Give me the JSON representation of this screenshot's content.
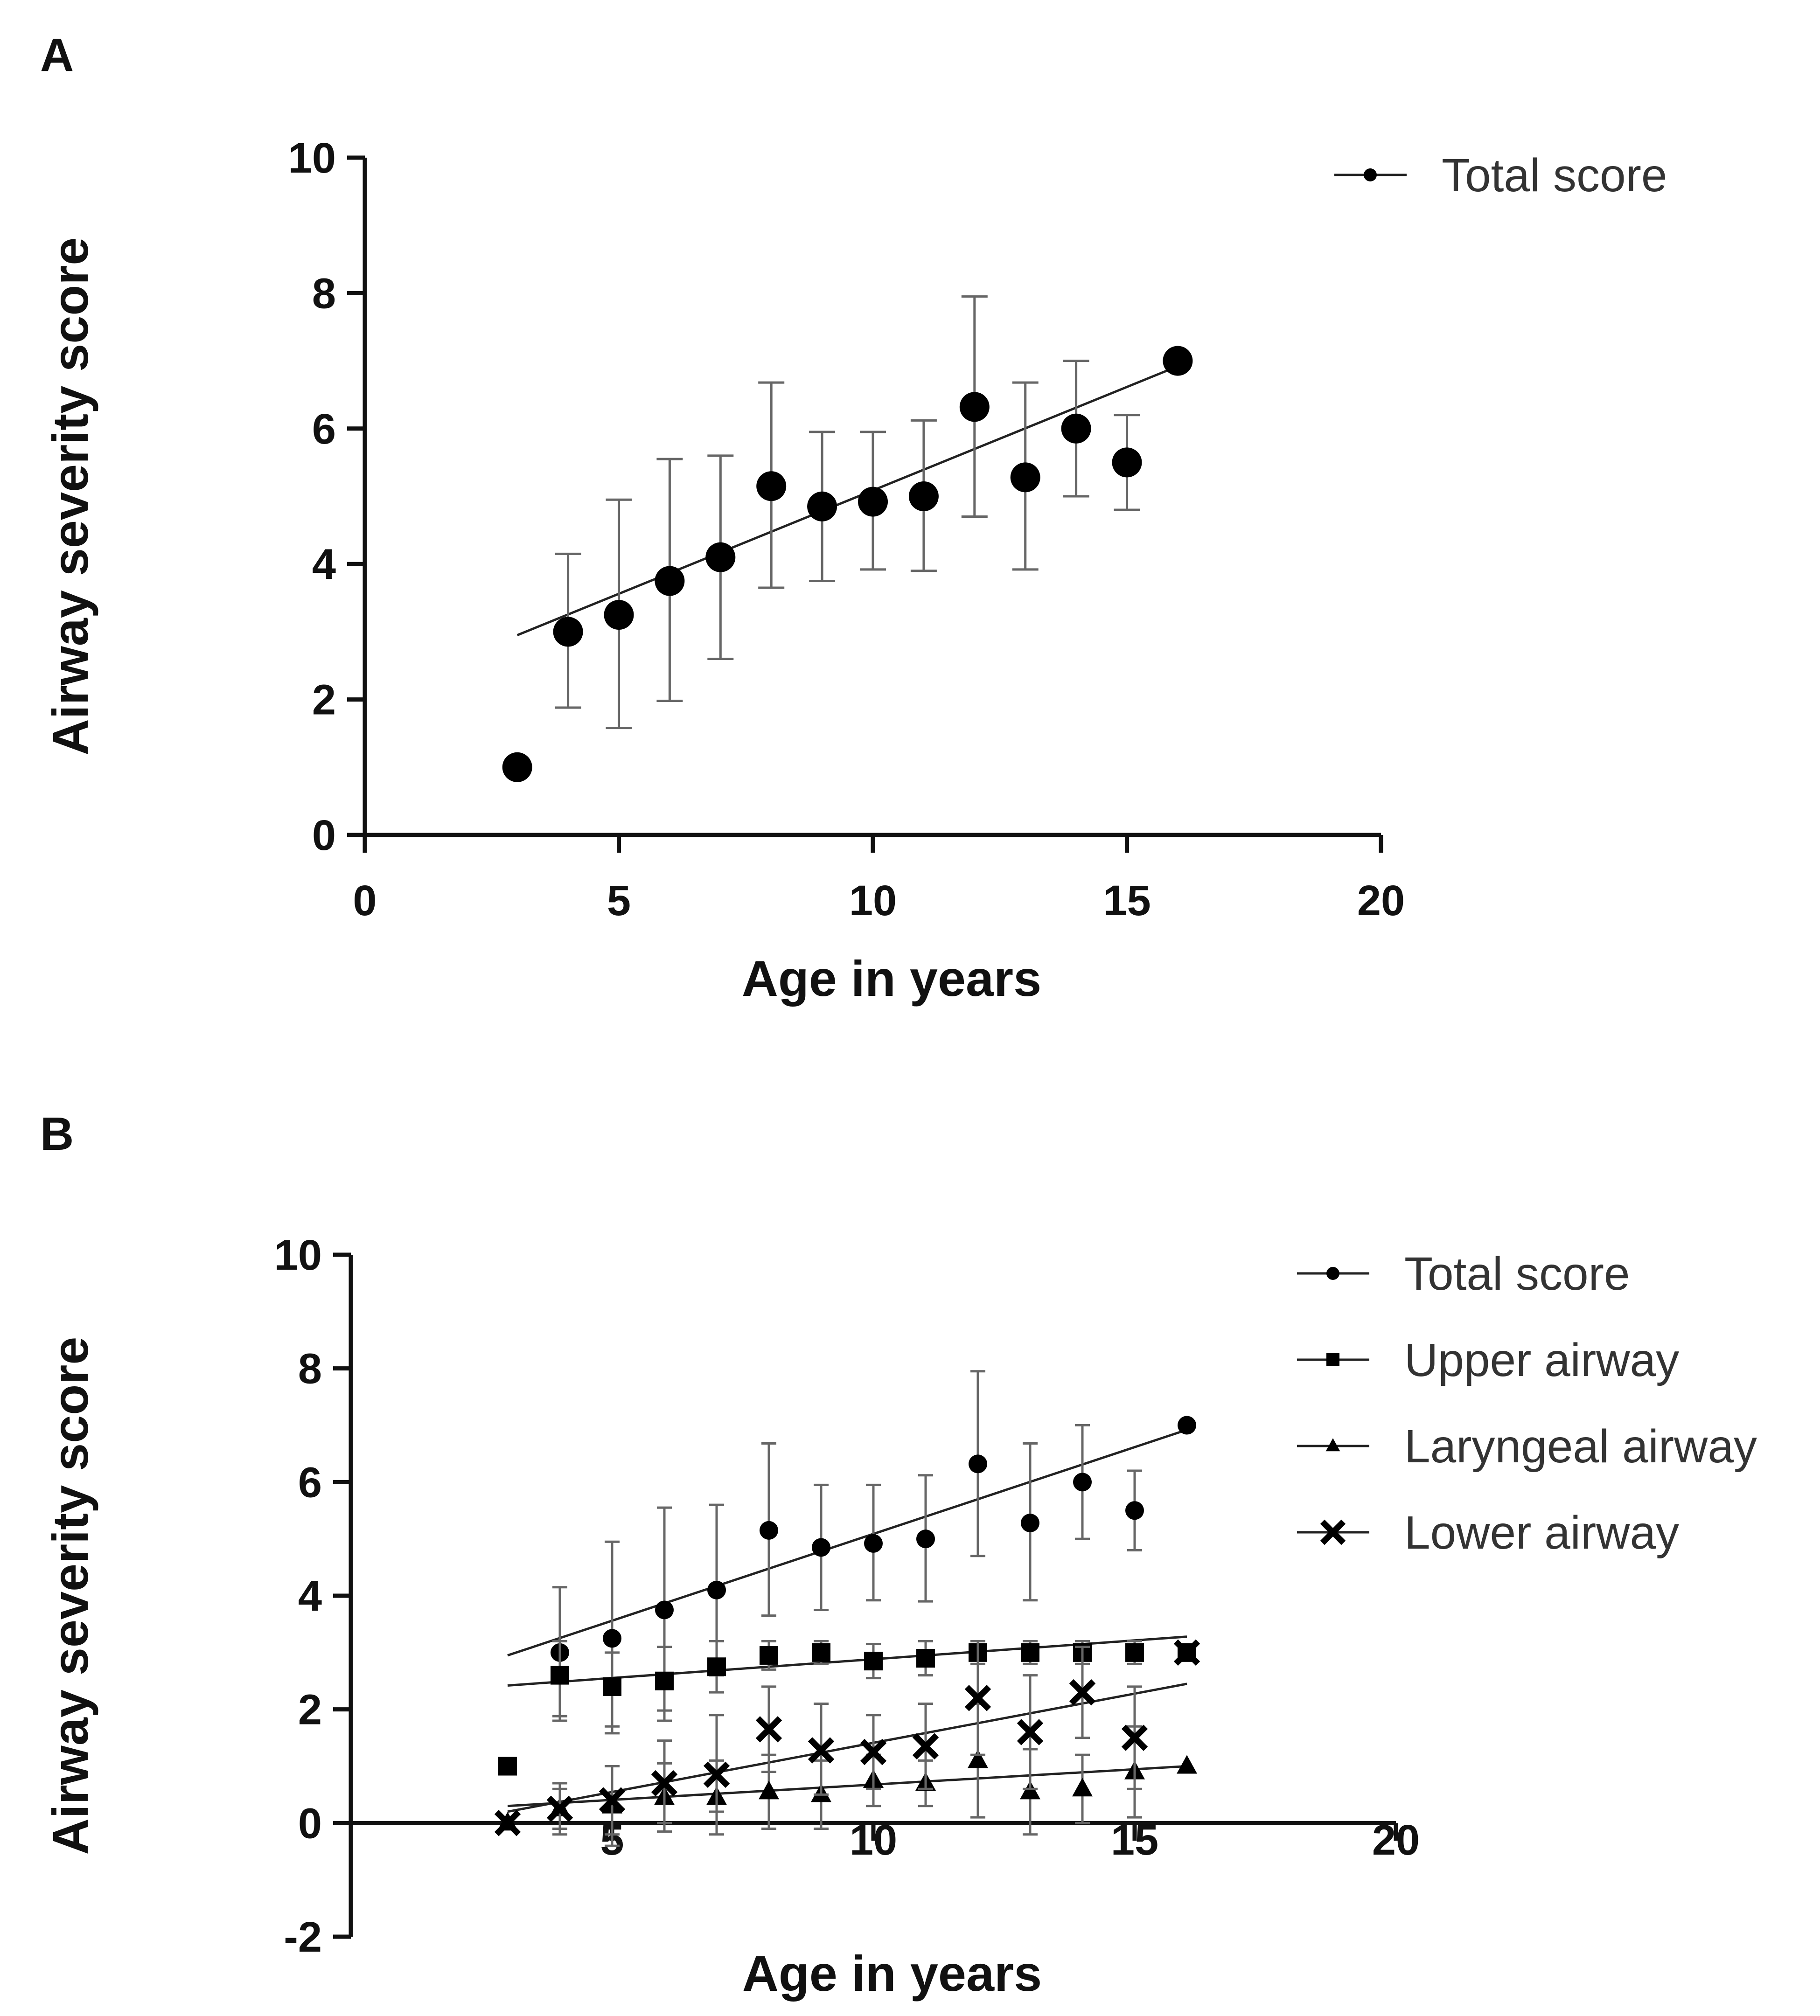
{
  "chart_data": [
    {
      "type": "scatter",
      "panel": "A",
      "title": "",
      "xlabel": "Age in years",
      "ylabel": "Airway severity score",
      "xlim": [
        0,
        20
      ],
      "ylim": [
        0,
        10
      ],
      "xticks": [
        "0",
        "5",
        "10",
        "15",
        "20"
      ],
      "yticks": [
        "0",
        "2",
        "4",
        "6",
        "8",
        "10"
      ],
      "grid": false,
      "legend_position": "top-right",
      "series": [
        {
          "name": "Total score",
          "marker": "circle",
          "x": [
            3,
            4,
            5,
            6,
            7,
            8,
            9,
            10,
            11,
            12,
            13,
            14,
            15,
            16
          ],
          "y": [
            1.0,
            3.0,
            3.25,
            3.75,
            4.1,
            5.15,
            4.85,
            4.92,
            5.0,
            6.32,
            5.28,
            6.0,
            5.5,
            7.0
          ],
          "err_low": [
            null,
            1.88,
            1.58,
            1.98,
            2.6,
            3.65,
            3.75,
            3.92,
            3.9,
            4.7,
            3.92,
            5.0,
            4.8,
            null
          ],
          "err_high": [
            null,
            4.15,
            4.95,
            5.55,
            5.6,
            6.68,
            5.95,
            5.95,
            6.12,
            7.95,
            6.68,
            7.0,
            6.2,
            null
          ],
          "fit": {
            "x": [
              3,
              16
            ],
            "y": [
              2.95,
              6.92
            ]
          }
        }
      ]
    },
    {
      "type": "scatter",
      "panel": "B",
      "title": "",
      "xlabel": "Age in years",
      "ylabel": "Airway severity score",
      "xlim": [
        0,
        20
      ],
      "ylim": [
        -2,
        10
      ],
      "xticks": [
        "5",
        "10",
        "15",
        "20"
      ],
      "yticks": [
        "-2",
        "0",
        "2",
        "4",
        "6",
        "8",
        "10"
      ],
      "grid": false,
      "legend_position": "top-right",
      "series": [
        {
          "name": "Total score",
          "marker": "circle",
          "x": [
            3,
            4,
            5,
            6,
            7,
            8,
            9,
            10,
            11,
            12,
            13,
            14,
            15,
            16
          ],
          "y": [
            1.0,
            3.0,
            3.25,
            3.75,
            4.1,
            5.15,
            4.85,
            4.92,
            5.0,
            6.32,
            5.28,
            6.0,
            5.5,
            7.0
          ],
          "err_low": [
            null,
            1.88,
            1.58,
            1.98,
            2.6,
            3.65,
            3.75,
            3.92,
            3.9,
            4.7,
            3.92,
            5.0,
            4.8,
            null
          ],
          "err_high": [
            null,
            4.15,
            4.95,
            5.55,
            5.6,
            6.68,
            5.95,
            5.95,
            6.12,
            7.95,
            6.68,
            7.0,
            6.2,
            null
          ],
          "fit": {
            "x": [
              3,
              16
            ],
            "y": [
              2.95,
              6.92
            ]
          }
        },
        {
          "name": "Upper airway",
          "marker": "square",
          "x": [
            3,
            4,
            5,
            6,
            7,
            8,
            9,
            10,
            11,
            12,
            13,
            14,
            15,
            16
          ],
          "y": [
            1.0,
            2.6,
            2.4,
            2.5,
            2.75,
            2.95,
            3.0,
            2.85,
            2.9,
            3.0,
            3.0,
            3.0,
            3.0,
            3.0
          ],
          "err_low": [
            null,
            1.8,
            1.7,
            1.8,
            2.3,
            2.7,
            2.8,
            2.55,
            2.6,
            2.8,
            2.8,
            2.8,
            2.8,
            null
          ],
          "err_high": [
            null,
            3.2,
            3.0,
            3.1,
            3.2,
            3.2,
            3.2,
            3.15,
            3.2,
            3.2,
            3.2,
            3.2,
            3.2,
            null
          ],
          "fit": {
            "x": [
              3,
              16
            ],
            "y": [
              2.42,
              3.28
            ]
          }
        },
        {
          "name": "Laryngeal airway",
          "marker": "triangle",
          "x": [
            3,
            4,
            5,
            6,
            7,
            8,
            9,
            10,
            11,
            12,
            13,
            14,
            15,
            16
          ],
          "y": [
            0.0,
            0.25,
            0.3,
            0.45,
            0.45,
            0.55,
            0.5,
            0.75,
            0.7,
            1.1,
            0.55,
            0.6,
            0.9,
            1.0
          ],
          "err_low": [
            null,
            -0.2,
            -0.4,
            -0.15,
            -0.2,
            -0.1,
            -0.1,
            0.3,
            0.3,
            0.1,
            -0.2,
            0.0,
            0.1,
            null
          ],
          "err_high": [
            null,
            0.7,
            1.0,
            1.05,
            1.1,
            1.2,
            1.1,
            1.2,
            1.1,
            2.1,
            1.3,
            1.2,
            1.7,
            null
          ],
          "fit": {
            "x": [
              3,
              16
            ],
            "y": [
              0.3,
              1.0
            ]
          }
        },
        {
          "name": "Lower airway",
          "marker": "x",
          "x": [
            3,
            4,
            5,
            6,
            7,
            8,
            9,
            10,
            11,
            12,
            13,
            14,
            15,
            16
          ],
          "y": [
            0.0,
            0.25,
            0.4,
            0.7,
            0.85,
            1.65,
            1.28,
            1.25,
            1.35,
            2.2,
            1.6,
            2.3,
            1.5,
            3.0
          ],
          "err_low": [
            null,
            -0.1,
            -0.2,
            0.0,
            0.2,
            0.9,
            0.5,
            0.6,
            0.6,
            1.2,
            0.6,
            1.5,
            0.6,
            null
          ],
          "err_high": [
            null,
            0.6,
            1.0,
            1.45,
            1.9,
            2.4,
            2.1,
            1.9,
            2.1,
            3.2,
            2.6,
            3.1,
            2.4,
            null
          ],
          "fit": {
            "x": [
              3,
              16
            ],
            "y": [
              0.2,
              2.45
            ]
          }
        }
      ]
    }
  ]
}
